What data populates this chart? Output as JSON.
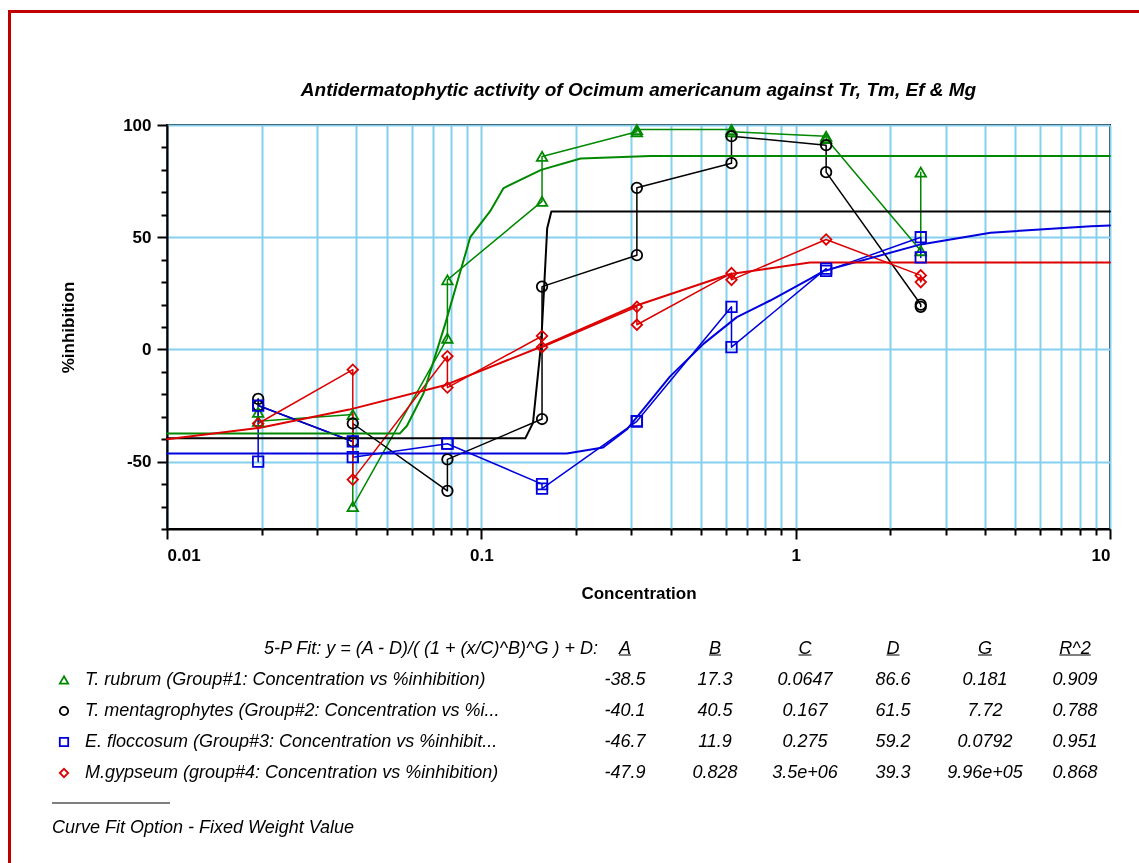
{
  "chart_data": {
    "type": "line",
    "title": "Antidermatophytic activity of Ocimum americanum against Tr, Tm, Ef & Mg",
    "xlabel": "Concentration",
    "ylabel": "%inhibition",
    "log": "x",
    "grid": true,
    "legend": "bottom",
    "xlim": [
      0.01,
      10
    ],
    "xticks": [
      0.01,
      {
        "value": 0.02,
        "label": null
      },
      {
        "value": 0.03,
        "label": null
      },
      {
        "value": 0.04,
        "label": null
      },
      {
        "value": 0.05,
        "label": null
      },
      {
        "value": 0.06,
        "label": null
      },
      {
        "value": 0.07,
        "label": null
      },
      {
        "value": 0.08,
        "label": null
      },
      {
        "value": 0.09,
        "label": null
      },
      0.1,
      {
        "value": 0.2,
        "label": null
      },
      {
        "value": 0.3,
        "label": null
      },
      {
        "value": 0.4,
        "label": null
      },
      {
        "value": 0.5,
        "label": null
      },
      {
        "value": 0.6,
        "label": null
      },
      {
        "value": 0.7,
        "label": null
      },
      {
        "value": 0.8,
        "label": null
      },
      {
        "value": 0.9,
        "label": null
      },
      1,
      {
        "value": 2,
        "label": null
      },
      {
        "value": 3,
        "label": null
      },
      {
        "value": 4,
        "label": null
      },
      {
        "value": 5,
        "label": null
      },
      {
        "value": 6,
        "label": null
      },
      {
        "value": 7,
        "label": null
      },
      {
        "value": 8,
        "label": null
      },
      {
        "value": 9,
        "label": null
      },
      10
    ],
    "ylim": [
      -80,
      100
    ],
    "yticks": [
      {
        "value": -80,
        "label": null
      },
      {
        "value": -70,
        "label": null
      },
      {
        "value": -60,
        "label": null
      },
      -50,
      {
        "value": -40,
        "label": null
      },
      {
        "value": -30,
        "label": null
      },
      {
        "value": -20,
        "label": null
      },
      {
        "value": -10,
        "label": null
      },
      0,
      {
        "value": 10,
        "label": null
      },
      {
        "value": 20,
        "label": null
      },
      {
        "value": 30,
        "label": null
      },
      {
        "value": 40,
        "label": null
      },
      50,
      {
        "value": 60,
        "label": null
      },
      {
        "value": 70,
        "label": null
      },
      {
        "value": 80,
        "label": null
      },
      {
        "value": 90,
        "label": null
      },
      100
    ],
    "series": [
      {
        "name": "T. rubrum (Group#1: Concentration vs %inhibition)",
        "color": "#008800",
        "marker": "triangle",
        "x": [
          0.0195,
          0.0195,
          0.039,
          0.039,
          0.078,
          0.078,
          0.156,
          0.156,
          0.3125,
          0.3125,
          0.625,
          0.625,
          1.25,
          1.25,
          2.5,
          2.5
        ],
        "values": [
          -28,
          -32,
          -29,
          -70,
          5,
          31,
          66,
          86,
          97,
          98,
          98,
          97,
          95,
          94,
          44,
          79
        ]
      },
      {
        "name": "T. mentagrophytes (Group#2: Concentration vs %i...",
        "color": "#000000",
        "marker": "circle",
        "x": [
          0.0195,
          0.0195,
          0.039,
          0.039,
          0.078,
          0.078,
          0.156,
          0.156,
          0.3125,
          0.3125,
          0.625,
          0.625,
          1.25,
          1.25,
          2.5,
          2.5
        ],
        "values": [
          -22,
          -25,
          -41,
          -33,
          -63,
          -49,
          -31,
          28,
          42,
          72,
          83,
          95,
          91,
          79,
          20,
          19
        ]
      },
      {
        "name": "E. floccosum (Group#3: Concentration vs %inhibit...",
        "color": "#0000dd",
        "marker": "square",
        "x": [
          0.0195,
          0.0195,
          0.039,
          0.039,
          0.078,
          0.078,
          0.156,
          0.156,
          0.3125,
          0.3125,
          0.625,
          0.625,
          1.25,
          1.25,
          2.5,
          2.5
        ],
        "values": [
          -50,
          -25,
          -41,
          -48,
          -42,
          -42,
          -60,
          -62,
          -32,
          -32,
          19,
          1,
          36,
          35,
          50,
          41
        ]
      },
      {
        "name": "M.gypseum (group#4: Concentration vs %inhibition)",
        "color": "#dd0000",
        "marker": "diamond",
        "x": [
          0.0195,
          0.039,
          0.039,
          0.078,
          0.078,
          0.156,
          0.156,
          0.3125,
          0.3125,
          0.625,
          0.625,
          1.25,
          2.5,
          2.5
        ],
        "values": [
          -33,
          -9,
          -58,
          -3,
          -17,
          6,
          1,
          19,
          11,
          34,
          31,
          49,
          33,
          30
        ]
      },
      {
        "type": "line",
        "color": "#008800",
        "x": [
          0.01,
          0.055,
          0.058,
          0.0655,
          0.0768,
          0.0922,
          0.1067,
          0.1177,
          0.155,
          0.207,
          0.345,
          10
        ],
        "values": [
          -37.5,
          -37.5,
          -34,
          -19.5,
          11.5,
          50,
          61.6,
          71.9,
          80,
          85.1,
          86.2,
          86.2
        ]
      },
      {
        "type": "line",
        "color": "#000000",
        "x": [
          0.01,
          0.138,
          0.146,
          0.155,
          0.159,
          0.162,
          0.167,
          10
        ],
        "values": [
          -39.6,
          -39.6,
          -32.7,
          2.8,
          32,
          54,
          61.5,
          61.5
        ]
      },
      {
        "type": "line",
        "color": "#0000dd",
        "x": [
          0.01,
          0.187,
          0.244,
          0.29,
          0.398,
          0.51,
          0.65,
          0.83,
          1.11,
          1.23,
          2.5,
          4.17,
          8.7,
          10
        ],
        "values": [
          -46.4,
          -46.4,
          -43.7,
          -35.7,
          -12.1,
          2.6,
          14.4,
          21.8,
          31.4,
          35,
          46.8,
          52,
          54.9,
          55.2
        ]
      },
      {
        "type": "line",
        "color": "#dd0000",
        "x": [
          0.01,
          0.0196,
          0.038,
          0.077,
          0.155,
          0.3,
          0.62,
          1.11,
          2,
          10
        ],
        "values": [
          -40,
          -35,
          -26.8,
          -15.8,
          1.2,
          18.8,
          33.6,
          38.7,
          38.7,
          38.7
        ]
      }
    ],
    "annotations": [
      "5-P Fit: y = (A - D)/( (1 + (x/C)^B)^G ) + D:",
      "A",
      "B",
      "C",
      "D",
      "G",
      "R^2",
      "-38.5",
      "17.3",
      "0.0647",
      "86.6",
      "0.181",
      "0.909",
      "-40.1",
      "40.5",
      "0.167",
      "61.5",
      "7.72",
      "0.788",
      "-46.7",
      "11.9",
      "0.275",
      "59.2",
      "0.0792",
      "0.951",
      "-47.9",
      "0.828",
      "3.5e+06",
      "39.3",
      "9.96e+05",
      "0.868",
      "Curve Fit Option - Fixed Weight Value"
    ]
  }
}
